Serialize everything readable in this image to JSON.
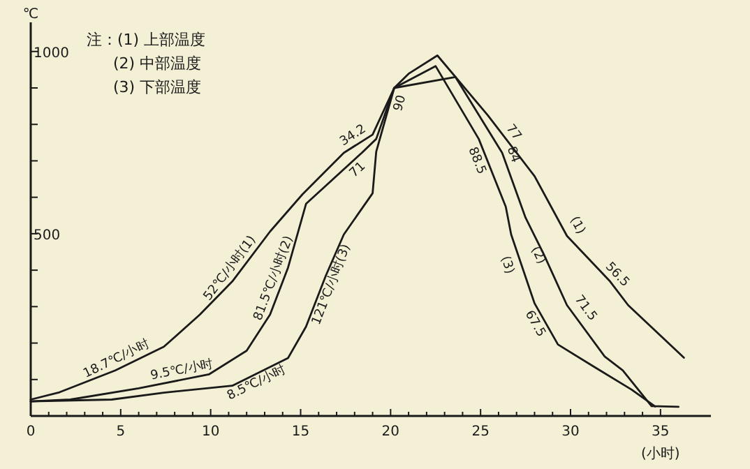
{
  "chart_data": {
    "type": "line",
    "xlabel": "(小时)",
    "ylabel": "℃",
    "xlim": [
      0,
      37.8
    ],
    "ylim": [
      0,
      1080
    ],
    "xticks": [
      0,
      {
        "value": 1,
        "label": null
      },
      {
        "value": 2,
        "label": null
      },
      {
        "value": 3,
        "label": null
      },
      {
        "value": 4,
        "label": null
      },
      5,
      {
        "value": 6,
        "label": null
      },
      {
        "value": 7,
        "label": null
      },
      {
        "value": 8,
        "label": null
      },
      {
        "value": 9,
        "label": null
      },
      10,
      {
        "value": 11,
        "label": null
      },
      {
        "value": 12,
        "label": null
      },
      {
        "value": 13,
        "label": null
      },
      {
        "value": 14,
        "label": null
      },
      15,
      {
        "value": 16,
        "label": null
      },
      {
        "value": 17,
        "label": null
      },
      {
        "value": 18,
        "label": null
      },
      {
        "value": 19,
        "label": null
      },
      20,
      {
        "value": 21,
        "label": null
      },
      {
        "value": 22,
        "label": null
      },
      {
        "value": 23,
        "label": null
      },
      {
        "value": 24,
        "label": null
      },
      25,
      {
        "value": 26,
        "label": null
      },
      {
        "value": 27,
        "label": null
      },
      {
        "value": 28,
        "label": null
      },
      {
        "value": 29,
        "label": null
      },
      30,
      {
        "value": 31,
        "label": null
      },
      {
        "value": 32,
        "label": null
      },
      {
        "value": 33,
        "label": null
      },
      {
        "value": 34,
        "label": null
      },
      35
    ],
    "yticks": [
      {
        "value": 100,
        "label": null
      },
      {
        "value": 200,
        "label": null
      },
      {
        "value": 300,
        "label": null
      },
      {
        "value": 400,
        "label": null
      },
      500,
      {
        "value": 600,
        "label": null
      },
      {
        "value": 700,
        "label": null
      },
      {
        "value": 800,
        "label": null
      },
      {
        "value": 900,
        "label": null
      },
      1000
    ],
    "series": [
      {
        "color": "#1a1a1a",
        "x": [
          0,
          1.6,
          4.7,
          7.4,
          9.4,
          11.2,
          13.3,
          15.1,
          17.4,
          19,
          20.2,
          21,
          22.6,
          25.4,
          28,
          29.8,
          32.2,
          33.2,
          36.3
        ],
        "values": [
          45,
          65,
          125,
          190,
          278,
          369,
          506,
          608,
          722,
          772,
          900,
          939,
          989,
          825,
          658,
          494,
          369,
          304,
          160
        ]
      },
      {
        "color": "#1a1a1a",
        "x": [
          0,
          2.2,
          6,
          9.9,
          12,
          13.3,
          14.3,
          15.3,
          18.4,
          19.2,
          20.2,
          23.6,
          26.2,
          27.5,
          28.5,
          29.8,
          31.9,
          32.9,
          34.5,
          36
        ],
        "values": [
          40,
          45,
          76,
          114,
          179,
          278,
          407,
          582,
          722,
          760,
          900,
          930,
          722,
          544,
          445,
          304,
          163,
          125,
          27,
          25
        ]
      },
      {
        "color": "#1a1a1a",
        "x": [
          0,
          4.5,
          7.4,
          11.2,
          14.3,
          15.3,
          16.4,
          17.4,
          19,
          19.2,
          20.2,
          22.5,
          24.9,
          26.4,
          26.7,
          28,
          29.3,
          31.4,
          33.4,
          34.7
        ],
        "values": [
          40,
          45,
          64,
          83,
          159,
          245,
          385,
          498,
          611,
          725,
          900,
          960,
          760,
          574,
          498,
          309,
          196,
          132,
          72,
          26
        ]
      }
    ],
    "annotations": [
      "注：(1) 上部温度",
      "(2) 中部温度",
      "(3) 下部温度",
      {
        "text": "18.7℃/小时",
        "x": 5,
        "y": 132
      },
      {
        "text": "9.5℃/小时",
        "x": 8.5,
        "y": 100
      },
      {
        "text": "8.5℃/小时",
        "x": 12.3,
        "y": 115
      },
      {
        "text": "52℃/小时(1)",
        "x": 11.5,
        "y": 389
      },
      {
        "text": "81.5℃/小时(2)",
        "x": 14,
        "y": 368
      },
      {
        "text": "121℃/小时(3)",
        "x": 16.2,
        "y": 370
      },
      {
        "text": "34.2",
        "x": 18.2,
        "y": 747
      },
      {
        "text": "71",
        "x": 17.8,
        "y": 695
      },
      {
        "text": "90",
        "x": 20,
        "y": 865
      },
      {
        "text": "77",
        "x": 26.4,
        "y": 761
      },
      {
        "text": "84",
        "x": 26.3,
        "y": 708
      },
      {
        "text": "88.5",
        "x": 25.3,
        "y": 710
      },
      {
        "text": "56.5",
        "x": 32.2,
        "y": 369
      },
      {
        "text": "71.5",
        "x": 30.4,
        "y": 280
      },
      {
        "text": "67.5",
        "x": 28.5,
        "y": 266
      },
      {
        "text": "(1)",
        "x": 29.9,
        "y": 510
      },
      {
        "text": "(2)",
        "x": 28.7,
        "y": 453
      },
      {
        "text": "(3)",
        "x": 27,
        "y": 423
      }
    ]
  }
}
